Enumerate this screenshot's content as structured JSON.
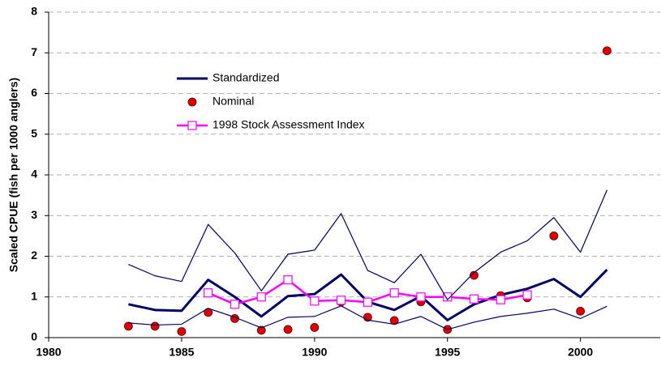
{
  "chart_data": {
    "type": "line",
    "y_label": "Scaled CPUE (fish per 1000 anglers)",
    "x": [
      1983,
      1984,
      1985,
      1986,
      1987,
      1988,
      1989,
      1990,
      1991,
      1992,
      1993,
      1994,
      1995,
      1996,
      1997,
      1998,
      1999,
      2000,
      2001
    ],
    "series": [
      {
        "name": "Standardized",
        "color": "#000066",
        "style": "line-thick",
        "values": [
          0.82,
          0.68,
          0.66,
          1.42,
          1.0,
          0.52,
          1.02,
          1.07,
          1.55,
          0.88,
          0.68,
          1.02,
          0.43,
          0.82,
          1.05,
          1.2,
          1.44,
          1.0,
          1.67
        ]
      },
      {
        "name": "Nominal",
        "color": "#dd0000",
        "style": "dots",
        "values": [
          0.28,
          0.28,
          0.15,
          0.62,
          0.47,
          0.18,
          0.2,
          0.25,
          0.88,
          0.5,
          0.42,
          0.88,
          0.2,
          1.53,
          1.03,
          0.98,
          2.5,
          0.65,
          7.05
        ]
      },
      {
        "name": "1998 Stock Assessment Index",
        "color": "#ff00ff",
        "style": "line-squares",
        "values": [
          null,
          null,
          null,
          1.1,
          0.82,
          1.0,
          1.42,
          0.9,
          0.92,
          0.87,
          1.1,
          1.0,
          1.0,
          0.95,
          0.93,
          1.05,
          null,
          null,
          null
        ]
      },
      {
        "color": "#000066",
        "style": "line-thin",
        "values": [
          1.8,
          1.52,
          1.38,
          2.78,
          2.08,
          1.15,
          2.05,
          2.15,
          3.05,
          1.65,
          1.35,
          2.05,
          0.93,
          1.6,
          2.1,
          2.38,
          2.95,
          2.1,
          3.63
        ]
      },
      {
        "color": "#000066",
        "style": "line-thin",
        "values": [
          0.36,
          0.31,
          0.33,
          0.72,
          0.5,
          0.24,
          0.5,
          0.52,
          0.78,
          0.43,
          0.33,
          0.52,
          0.2,
          0.38,
          0.52,
          0.6,
          0.7,
          0.47,
          0.77
        ]
      }
    ],
    "xlim": [
      1980,
      2003
    ],
    "xticks": [
      1980,
      1985,
      1990,
      1995,
      2000
    ],
    "ylim": [
      0,
      8
    ],
    "yticks": [
      0,
      1,
      2,
      3,
      4,
      5,
      6,
      7,
      8
    ],
    "grid": true,
    "legend": "upper-left"
  }
}
